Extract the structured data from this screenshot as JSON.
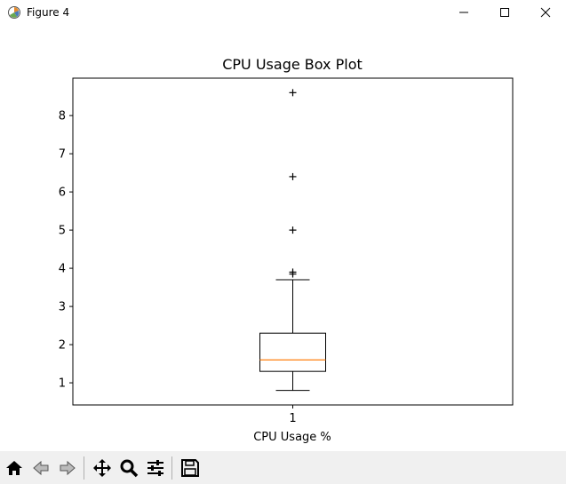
{
  "window": {
    "title": "Figure 4",
    "app_icon": "matplotlib-icon",
    "controls": [
      "minimize-icon",
      "maximize-icon",
      "close-icon"
    ]
  },
  "toolbar": {
    "buttons": [
      "home-icon",
      "back-icon",
      "forward-icon",
      "pan-icon",
      "zoom-icon",
      "configure-subplots-icon",
      "save-icon"
    ]
  },
  "colors": {
    "median": "#ff7f0e",
    "box": "#000000",
    "toolbar_bg": "#f0f0f0"
  },
  "chart_data": {
    "type": "box",
    "title": "CPU Usage Box Plot",
    "xlabel": "CPU Usage %",
    "ylabel": "",
    "categories": [
      "1"
    ],
    "yticks": [
      1,
      2,
      3,
      4,
      5,
      6,
      7,
      8
    ],
    "ylim": [
      0.42,
      8.98
    ],
    "boxes": [
      {
        "label": "1",
        "whisker_low": 0.8,
        "q1": 1.3,
        "median": 1.6,
        "q3": 2.3,
        "whisker_high": 3.7,
        "outliers": [
          3.85,
          3.9,
          5.0,
          6.4,
          8.6
        ]
      }
    ],
    "grid": false,
    "legend": "none"
  }
}
